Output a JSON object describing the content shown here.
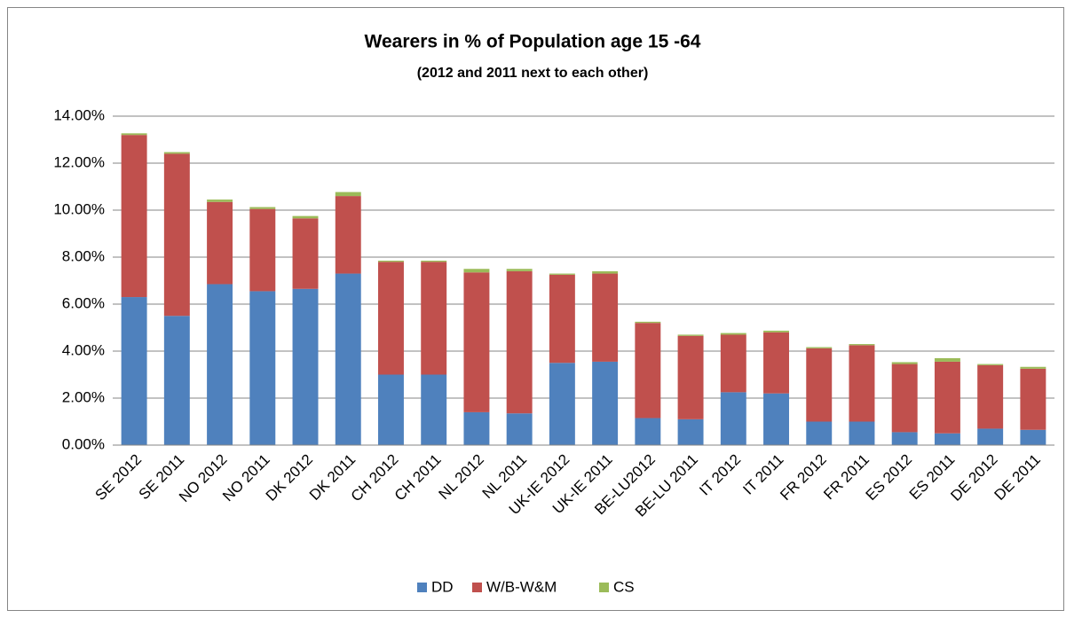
{
  "chart_data": {
    "type": "stacked_bar",
    "title": "Wearers in % of Population age 15 -64",
    "subtitle": "(2012 and 2011 next to each other)",
    "categories": [
      "SE 2012",
      "SE 2011",
      "NO 2012",
      "NO 2011",
      "DK 2012",
      "DK 2011",
      "CH 2012",
      "CH 2011",
      "NL 2012",
      "NL 2011",
      "UK-IE 2012",
      "UK-IE 2011",
      "BE-LU2012",
      "BE-LU 2011",
      "IT 2012",
      "IT 2011",
      "FR 2012",
      "FR 2011",
      "ES 2012",
      "ES 2011",
      "DE 2012",
      "DE 2011"
    ],
    "series": [
      {
        "name": "DD",
        "color": "#4f81bd",
        "values": [
          6.3,
          5.5,
          6.85,
          6.55,
          6.65,
          7.3,
          3.0,
          3.0,
          1.4,
          1.35,
          3.5,
          3.55,
          1.15,
          1.1,
          2.25,
          2.2,
          1.0,
          1.0,
          0.55,
          0.5,
          0.7,
          0.65
        ]
      },
      {
        "name": "W/B-W&M",
        "color": "#c0504d",
        "values": [
          6.9,
          6.9,
          3.5,
          3.5,
          3.0,
          3.3,
          4.8,
          4.8,
          5.95,
          6.05,
          3.75,
          3.75,
          4.05,
          3.55,
          2.45,
          2.6,
          3.12,
          3.25,
          2.9,
          3.05,
          2.7,
          2.6
        ]
      },
      {
        "name": "CS",
        "color": "#9bbb59",
        "values": [
          0.07,
          0.07,
          0.1,
          0.08,
          0.1,
          0.17,
          0.05,
          0.05,
          0.15,
          0.1,
          0.05,
          0.1,
          0.05,
          0.05,
          0.07,
          0.07,
          0.05,
          0.05,
          0.08,
          0.15,
          0.05,
          0.08
        ]
      }
    ],
    "ylim": [
      0,
      14
    ],
    "yticks": [
      {
        "value": 0,
        "label": "0.00%"
      },
      {
        "value": 2,
        "label": "2.00%"
      },
      {
        "value": 4,
        "label": "4.00%"
      },
      {
        "value": 6,
        "label": "6.00%"
      },
      {
        "value": 8,
        "label": "8.00%"
      },
      {
        "value": 10,
        "label": "10.00%"
      },
      {
        "value": 12,
        "label": "12.00%"
      },
      {
        "value": 14,
        "label": "14.00%"
      }
    ],
    "grid": true,
    "legend": "bottom"
  }
}
